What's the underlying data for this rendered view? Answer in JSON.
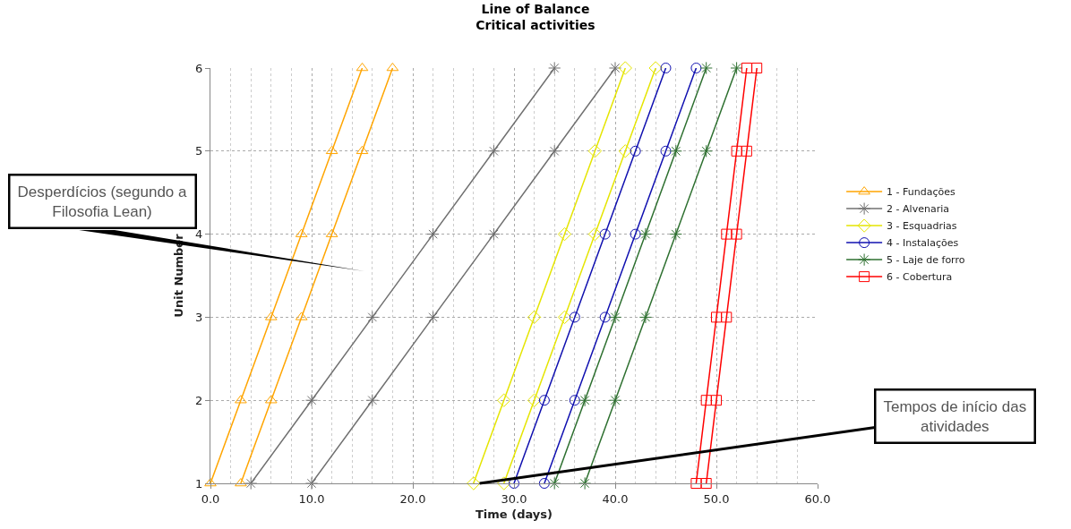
{
  "chart_data": {
    "type": "line",
    "title": "Line of Balance\nCritical activities",
    "xlabel": "Time (days)",
    "ylabel": "Unit Number",
    "xlim": [
      0,
      60
    ],
    "xticks": [
      {
        "value": 0,
        "label": "0.0"
      },
      {
        "value": 10,
        "label": "10.0"
      },
      {
        "value": 20,
        "label": "20.0"
      },
      {
        "value": 30,
        "label": "30.0"
      },
      {
        "value": 40,
        "label": "40.0"
      },
      {
        "value": 50,
        "label": "50.0"
      },
      {
        "value": 60,
        "label": "60.0"
      }
    ],
    "ylim": [
      1,
      6
    ],
    "yticks": [
      1,
      2,
      3,
      4,
      5,
      6
    ],
    "grid": true,
    "legend": "right",
    "line_style": "solid",
    "series": [
      {
        "name": "1 - Fundações",
        "color": "#ffa500",
        "marker": "triangle",
        "x": [
          0,
          3,
          6,
          9,
          12,
          15
        ],
        "values": [
          1,
          2,
          3,
          4,
          5,
          6
        ]
      },
      {
        "color": "#ffa500",
        "marker": "triangle",
        "x": [
          3,
          6,
          9,
          12,
          15,
          18
        ],
        "values": [
          1,
          2,
          3,
          4,
          5,
          6
        ]
      },
      {
        "name": "2 - Alvenaria",
        "color": "#707070",
        "marker": "cross",
        "x": [
          4,
          10,
          16,
          22,
          28,
          34
        ],
        "values": [
          1,
          2,
          3,
          4,
          5,
          6
        ]
      },
      {
        "color": "#707070",
        "marker": "cross",
        "x": [
          10,
          16,
          22,
          28,
          34,
          40
        ],
        "values": [
          1,
          2,
          3,
          4,
          5,
          6
        ]
      },
      {
        "name": "3 - Esquadrias",
        "color": "#e5e500",
        "marker": "diamond",
        "x": [
          26,
          29,
          32,
          35,
          38,
          41
        ],
        "values": [
          1,
          2,
          3,
          4,
          5,
          6
        ]
      },
      {
        "color": "#e5e500",
        "marker": "diamond",
        "x": [
          29,
          32,
          35,
          38,
          41,
          44
        ],
        "values": [
          1,
          2,
          3,
          4,
          5,
          6
        ]
      },
      {
        "name": "4 - Instalações",
        "color": "#1010b0",
        "marker": "circle",
        "x": [
          30,
          33,
          36,
          39,
          42,
          45
        ],
        "values": [
          1,
          2,
          3,
          4,
          5,
          6
        ]
      },
      {
        "color": "#1010b0",
        "marker": "circle",
        "x": [
          33,
          36,
          39,
          42,
          45,
          48
        ],
        "values": [
          1,
          2,
          3,
          4,
          5,
          6
        ]
      },
      {
        "name": "5 - Laje de forro",
        "color": "#2e7030",
        "marker": "cross",
        "x": [
          34,
          37,
          40,
          43,
          46,
          49
        ],
        "values": [
          1,
          2,
          3,
          4,
          5,
          6
        ]
      },
      {
        "color": "#2e7030",
        "marker": "cross",
        "x": [
          37,
          40,
          43,
          46,
          49,
          52
        ],
        "values": [
          1,
          2,
          3,
          4,
          5,
          6
        ]
      },
      {
        "name": "6 - Cobertura",
        "color": "#ff0000",
        "marker": "square",
        "x": [
          48,
          49,
          50,
          51,
          52,
          53
        ],
        "values": [
          1,
          2,
          3,
          4,
          5,
          6
        ]
      },
      {
        "color": "#ff0000",
        "marker": "square",
        "x": [
          49,
          50,
          51,
          52,
          53,
          54
        ],
        "values": [
          1,
          2,
          3,
          4,
          5,
          6
        ]
      }
    ],
    "annotations": [
      "Desperdícios (segundo a\nFilosofia Lean)",
      {
        "text": "Tempos de início das\natividades",
        "x": 26.6,
        "y": 1
      }
    ]
  }
}
